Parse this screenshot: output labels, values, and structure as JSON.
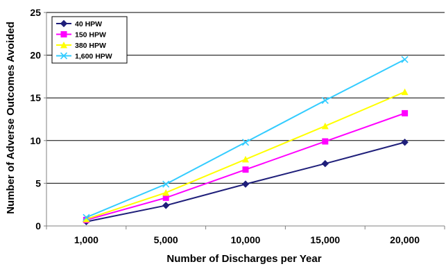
{
  "chart_data": {
    "type": "line",
    "title": "",
    "xlabel": "Number of Discharges per Year",
    "ylabel": "Number of Adverse Outcomes Avoided",
    "categories": [
      "1,000",
      "5,000",
      "10,000",
      "15,000",
      "20,000"
    ],
    "ylim": [
      0,
      25
    ],
    "yticks": [
      0,
      5,
      10,
      15,
      20,
      25
    ],
    "grid": "horizontal",
    "legend_position": "top-left",
    "series": [
      {
        "name": "40 HPW",
        "values": [
          0.5,
          2.4,
          4.9,
          7.3,
          9.8
        ],
        "color": "#1f1f7a",
        "marker": "diamond"
      },
      {
        "name": "150 HPW",
        "values": [
          0.7,
          3.3,
          6.6,
          9.9,
          13.2
        ],
        "color": "#ff00ff",
        "marker": "square"
      },
      {
        "name": "380 HPW",
        "values": [
          0.8,
          3.9,
          7.8,
          11.7,
          15.7
        ],
        "color": "#ffff00",
        "marker": "triangle"
      },
      {
        "name": "1,600 HPW",
        "values": [
          1.0,
          4.9,
          9.8,
          14.7,
          19.5
        ],
        "color": "#33ccff",
        "marker": "x"
      }
    ]
  }
}
